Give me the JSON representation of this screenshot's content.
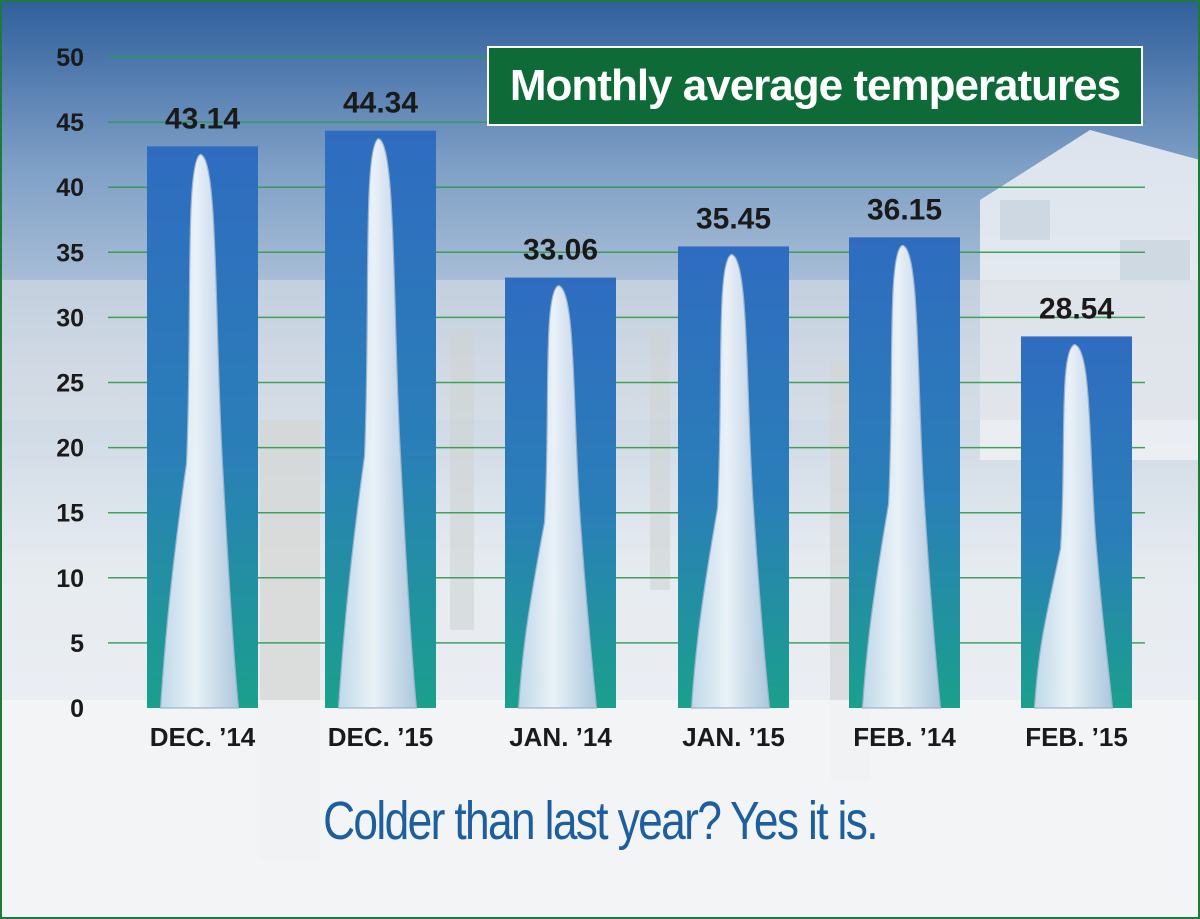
{
  "chart_data": {
    "type": "bar",
    "title": "Monthly average temperatures",
    "subtitle": "Colder than last year? Yes it is.",
    "categories": [
      "DEC. ’14",
      "DEC. ’15",
      "JAN. ’14",
      "JAN. ’15",
      "FEB. ’14",
      "FEB. ’15"
    ],
    "values": [
      43.14,
      44.34,
      33.06,
      35.45,
      36.15,
      28.54
    ],
    "data_labels": [
      "43.14",
      "44.34",
      "33.06",
      "35.45",
      "36.15",
      "28.54"
    ],
    "yticks": [
      "0",
      "5",
      "10",
      "15",
      "20",
      "25",
      "30",
      "35",
      "40",
      "45",
      "50"
    ],
    "ylim": [
      0,
      50
    ],
    "grid": true,
    "colors": {
      "grid": "#2e9b4a",
      "title_bg": "#0e6b38",
      "subtitle": "#1d5f9e",
      "bar_top": "#2e6fc0",
      "bar_bottom": "#1ea08a",
      "icicle": "#e6f1fb"
    }
  }
}
